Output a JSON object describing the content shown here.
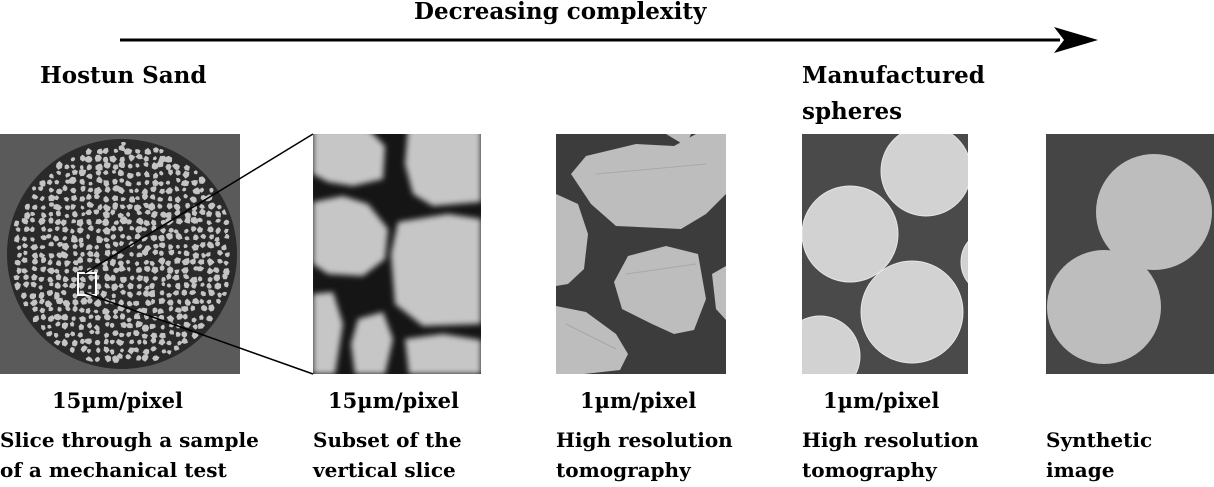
{
  "title": "Decreasing complexity",
  "groups": {
    "sand": "Hostun Sand",
    "spheres_line1": "Manufactured",
    "spheres_line2": "spheres"
  },
  "panels": [
    {
      "resolution": "15µm/pixel",
      "caption_line1": "Slice through a sample",
      "caption_line2": "of a mechanical test"
    },
    {
      "resolution": "15µm/pixel",
      "caption_line1": "Subset of the",
      "caption_line2": "vertical slice"
    },
    {
      "resolution": "1µm/pixel",
      "caption_line1": "High resolution",
      "caption_line2": "tomography"
    },
    {
      "resolution": "1µm/pixel",
      "caption_line1": "High resolution",
      "caption_line2": "tomography"
    },
    {
      "resolution": "",
      "caption_line1": "Synthetic",
      "caption_line2": "image"
    }
  ],
  "colors": {
    "background_gray": "#4a4a4a",
    "grain_gray": "#c4c4c4",
    "sphere_gray": "#d2d2d2",
    "synthetic_gray": "#bdbdbd"
  }
}
